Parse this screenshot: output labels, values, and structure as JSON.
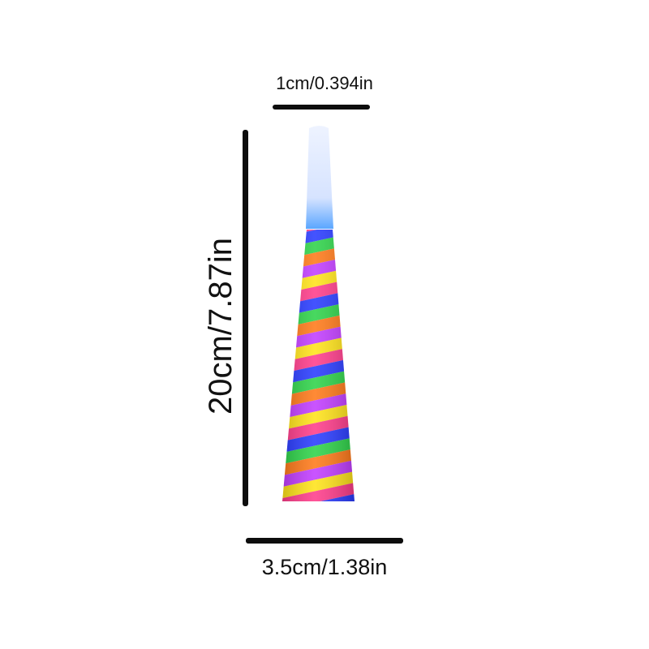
{
  "dimensions": {
    "top_width": "1cm/0.394in",
    "height": "20cm/7.87in",
    "bottom_width": "3.5cm/1.38in"
  },
  "product": {
    "name_icon": "party-horn-illustration",
    "stripe_colors": [
      "#ffe31a",
      "#ff3d8b",
      "#2a3cff",
      "#2fd34a",
      "#ff7a1a",
      "#c23dff"
    ],
    "mouthpiece_color": "#dfe9ff"
  }
}
